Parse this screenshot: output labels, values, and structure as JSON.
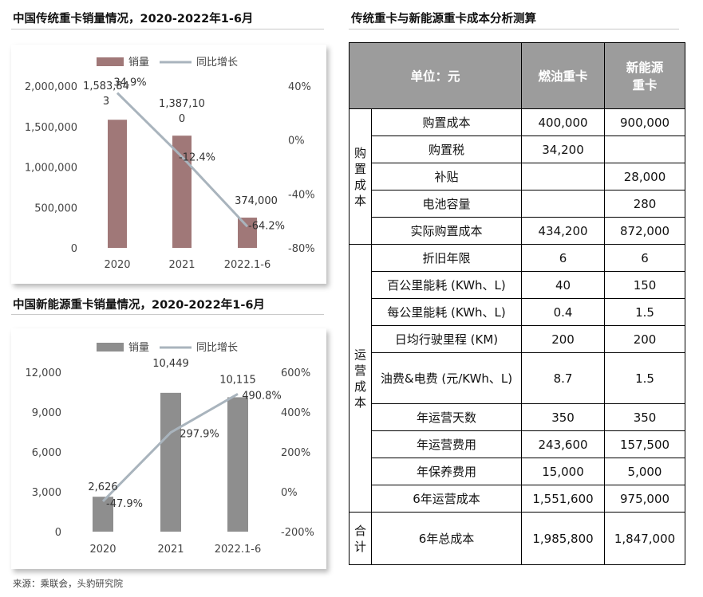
{
  "left_top": {
    "title": "中国传统重卡销量情况，2020-2022年1-6月"
  },
  "left_bottom": {
    "title": "中国新能源重卡销量情况，2020-2022年1-6月"
  },
  "right": {
    "title": "传统重卡与新能源重卡成本分析测算"
  },
  "source": "来源：乘联会，头豹研究院",
  "colors": {
    "bar_traditional": "#a07878",
    "bar_nev": "#8e8e8e",
    "line": "#a9b4bd",
    "header_bg": "#9c9c9c"
  },
  "chart_data": [
    {
      "type": "bar",
      "title": "中国传统重卡销量情况，2020-2022年1-6月",
      "categories": [
        "2020",
        "2021",
        "2022.1-6"
      ],
      "y_tick_labels": [
        "0",
        "500,000",
        "1,000,000",
        "1,500,000",
        "2,000,000"
      ],
      "y2_tick_labels": [
        "-80%",
        "-40%",
        "0%",
        "40%"
      ],
      "ylim": [
        0,
        2000000
      ],
      "y2lim": [
        -0.8,
        0.4
      ],
      "legend_position": "top",
      "grid": false,
      "series": [
        {
          "name": "销量",
          "kind": "bar",
          "color": "#a07878",
          "values": [
            1583843,
            1387100,
            374000
          ],
          "labels": [
            [
              "1,583,84",
              "3"
            ],
            [
              "1,387,10",
              "0"
            ],
            [
              "374,000"
            ]
          ]
        },
        {
          "name": "同比增长",
          "kind": "line",
          "axis": "right",
          "color": "#a9b4bd",
          "values": [
            0.349,
            -0.124,
            -0.642
          ],
          "labels": [
            "34.9%",
            "-12.4%",
            "-64.2%"
          ]
        }
      ]
    },
    {
      "type": "bar",
      "title": "中国新能源重卡销量情况，2020-2022年1-6月",
      "categories": [
        "2020",
        "2021",
        "2022.1-6"
      ],
      "y_tick_labels": [
        "0",
        "3,000",
        "6,000",
        "9,000",
        "12,000"
      ],
      "y2_tick_labels": [
        "-200%",
        "0%",
        "200%",
        "400%",
        "600%"
      ],
      "ylim": [
        0,
        12000
      ],
      "y2lim": [
        -2.0,
        6.0
      ],
      "legend_position": "top",
      "grid": false,
      "series": [
        {
          "name": "销量",
          "kind": "bar",
          "color": "#8e8e8e",
          "values": [
            2626,
            10449,
            10115
          ],
          "labels": [
            [
              "2,626"
            ],
            [
              "10,449"
            ],
            [
              "10,115"
            ]
          ]
        },
        {
          "name": "同比增长",
          "kind": "line",
          "axis": "right",
          "color": "#a9b4bd",
          "values": [
            -0.479,
            2.979,
            4.908
          ],
          "labels": [
            "-47.9%",
            "297.9%",
            "490.8%"
          ]
        }
      ]
    },
    {
      "type": "table",
      "title": "传统重卡与新能源重卡成本分析测算",
      "header": {
        "unit": "单位：元",
        "col1": "燃油重卡",
        "col2_line1": "新能源",
        "col2_line2": "重卡"
      },
      "groups": [
        {
          "chars": [
            "购",
            "置",
            "成",
            "本"
          ],
          "rows": [
            {
              "item": "购置成本",
              "fuel": "400,000",
              "ev": "900,000"
            },
            {
              "item": "购置税",
              "fuel": "34,200",
              "ev": ""
            },
            {
              "item": "补贴",
              "fuel": "",
              "ev": "28,000"
            },
            {
              "item": "电池容量",
              "fuel": "",
              "ev": "280"
            },
            {
              "item": "实际购置成本",
              "fuel": "434,200",
              "ev": "872,000"
            }
          ]
        },
        {
          "chars": [
            "运",
            "营",
            "成",
            "本"
          ],
          "rows": [
            {
              "item": "折旧年限",
              "fuel": "6",
              "ev": "6"
            },
            {
              "item": "百公里能耗 (KWh、L)",
              "fuel": "40",
              "ev": "150"
            },
            {
              "item": "每公里能耗 (KWh、L)",
              "fuel": "0.4",
              "ev": "1.5"
            },
            {
              "item": "日均行驶里程 (KM)",
              "fuel": "200",
              "ev": "200"
            },
            {
              "item": "油费&电费 (元/KWh、L)",
              "fuel": "8.7",
              "ev": "1.5"
            },
            {
              "item": "年运营天数",
              "fuel": "350",
              "ev": "350"
            },
            {
              "item": "年运营费用",
              "fuel": "243,600",
              "ev": "157,500"
            },
            {
              "item": "年保养费用",
              "fuel": "15,000",
              "ev": "5,000"
            },
            {
              "item": "6年运营成本",
              "fuel": "1,551,600",
              "ev": "975,000"
            }
          ]
        },
        {
          "chars": [
            "合",
            "计"
          ],
          "rows": [
            {
              "item": "6年总成本",
              "fuel": "1,985,800",
              "ev": "1,847,000"
            }
          ]
        }
      ]
    }
  ]
}
